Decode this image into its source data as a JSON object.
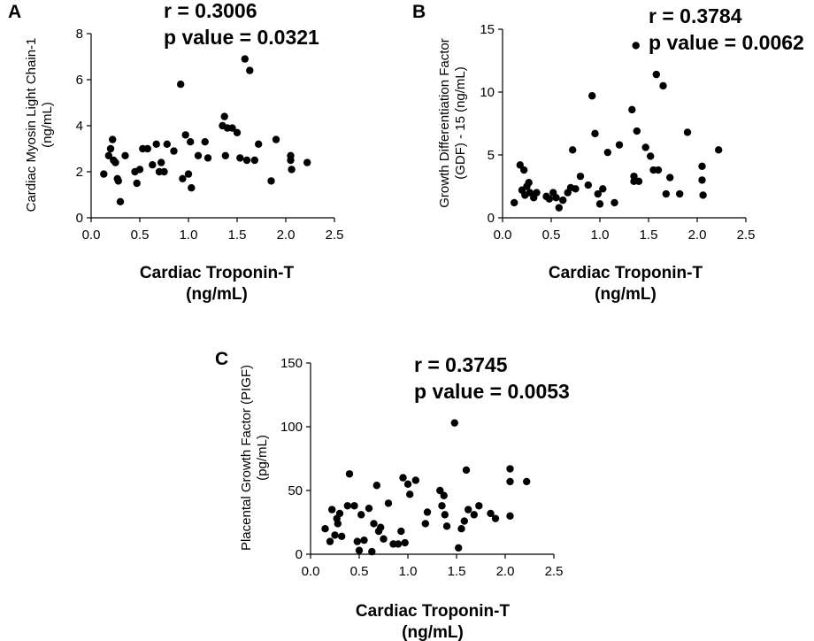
{
  "chart_data": [
    {
      "type": "scatter",
      "panel_label": "A",
      "stats": {
        "r": "r = 0.3006",
        "p": "p value = 0.0321"
      },
      "xlabel": [
        "Cardiac Troponin-T",
        "(ng/mL)"
      ],
      "ylabel": [
        "Cardiac Myosin Light Chain-1",
        "(ng/mL)"
      ],
      "xlim": [
        0,
        2.5
      ],
      "ylim": [
        0,
        8
      ],
      "xticks": [
        "0.0",
        "0.5",
        "1.0",
        "1.5",
        "2.0",
        "2.5"
      ],
      "xtick_values": [
        0,
        0.5,
        1.0,
        1.5,
        2.0,
        2.5
      ],
      "yticks": [
        "0",
        "2",
        "4",
        "6",
        "8"
      ],
      "ytick_values": [
        0,
        2,
        4,
        6,
        8
      ],
      "points": [
        [
          0.13,
          1.9
        ],
        [
          0.18,
          2.7
        ],
        [
          0.2,
          3.0
        ],
        [
          0.22,
          3.4
        ],
        [
          0.23,
          2.5
        ],
        [
          0.25,
          2.4
        ],
        [
          0.27,
          1.7
        ],
        [
          0.28,
          1.6
        ],
        [
          0.3,
          0.7
        ],
        [
          0.35,
          2.7
        ],
        [
          0.45,
          2.0
        ],
        [
          0.47,
          1.5
        ],
        [
          0.5,
          2.1
        ],
        [
          0.53,
          3.0
        ],
        [
          0.58,
          3.0
        ],
        [
          0.63,
          2.3
        ],
        [
          0.67,
          3.2
        ],
        [
          0.7,
          2.0
        ],
        [
          0.72,
          2.4
        ],
        [
          0.75,
          2.0
        ],
        [
          0.78,
          3.2
        ],
        [
          0.85,
          2.9
        ],
        [
          0.92,
          5.8
        ],
        [
          0.94,
          1.7
        ],
        [
          0.97,
          3.6
        ],
        [
          1.0,
          1.9
        ],
        [
          1.02,
          3.3
        ],
        [
          1.03,
          1.3
        ],
        [
          1.1,
          2.7
        ],
        [
          1.17,
          3.3
        ],
        [
          1.2,
          2.6
        ],
        [
          1.35,
          4.0
        ],
        [
          1.37,
          4.4
        ],
        [
          1.38,
          2.7
        ],
        [
          1.4,
          3.9
        ],
        [
          1.45,
          3.9
        ],
        [
          1.5,
          3.7
        ],
        [
          1.53,
          2.6
        ],
        [
          1.58,
          6.9
        ],
        [
          1.6,
          2.5
        ],
        [
          1.63,
          6.4
        ],
        [
          1.68,
          2.5
        ],
        [
          1.72,
          3.2
        ],
        [
          1.85,
          1.6
        ],
        [
          1.9,
          3.4
        ],
        [
          2.05,
          2.7
        ],
        [
          2.05,
          2.5
        ],
        [
          2.06,
          2.1
        ],
        [
          2.22,
          2.4
        ]
      ]
    },
    {
      "type": "scatter",
      "panel_label": "B",
      "stats": {
        "r": "r = 0.3784",
        "p": "p value = 0.0062"
      },
      "xlabel": [
        "Cardiac Troponin-T",
        "(ng/mL)"
      ],
      "ylabel": [
        "Growth Differentiation Factor",
        "(GDF) - 15 (ng/mL)"
      ],
      "xlim": [
        0,
        2.5
      ],
      "ylim": [
        0,
        15
      ],
      "xticks": [
        "0.0",
        "0.5",
        "1.0",
        "1.5",
        "2.0",
        "2.5"
      ],
      "xtick_values": [
        0,
        0.5,
        1.0,
        1.5,
        2.0,
        2.5
      ],
      "yticks": [
        "0",
        "5",
        "10",
        "15"
      ],
      "ytick_values": [
        0,
        5,
        10,
        15
      ],
      "points": [
        [
          0.12,
          1.2
        ],
        [
          0.18,
          4.2
        ],
        [
          0.2,
          2.2
        ],
        [
          0.22,
          3.8
        ],
        [
          0.23,
          1.8
        ],
        [
          0.25,
          2.5
        ],
        [
          0.27,
          2.8
        ],
        [
          0.28,
          2.0
        ],
        [
          0.32,
          1.6
        ],
        [
          0.35,
          2.0
        ],
        [
          0.45,
          1.7
        ],
        [
          0.48,
          1.5
        ],
        [
          0.52,
          2.0
        ],
        [
          0.55,
          1.6
        ],
        [
          0.58,
          0.8
        ],
        [
          0.62,
          1.4
        ],
        [
          0.67,
          2.0
        ],
        [
          0.7,
          2.4
        ],
        [
          0.72,
          5.4
        ],
        [
          0.75,
          2.3
        ],
        [
          0.8,
          3.3
        ],
        [
          0.88,
          2.6
        ],
        [
          0.92,
          9.7
        ],
        [
          0.95,
          6.7
        ],
        [
          0.98,
          1.9
        ],
        [
          1.0,
          1.1
        ],
        [
          1.03,
          2.3
        ],
        [
          1.08,
          5.2
        ],
        [
          1.15,
          1.2
        ],
        [
          1.2,
          5.8
        ],
        [
          1.33,
          8.6
        ],
        [
          1.35,
          3.3
        ],
        [
          1.35,
          2.9
        ],
        [
          1.37,
          13.7
        ],
        [
          1.38,
          6.9
        ],
        [
          1.4,
          2.9
        ],
        [
          1.47,
          5.6
        ],
        [
          1.52,
          4.9
        ],
        [
          1.55,
          3.8
        ],
        [
          1.58,
          11.4
        ],
        [
          1.6,
          3.8
        ],
        [
          1.65,
          10.5
        ],
        [
          1.68,
          1.9
        ],
        [
          1.72,
          3.2
        ],
        [
          1.82,
          1.9
        ],
        [
          1.9,
          6.8
        ],
        [
          2.05,
          4.1
        ],
        [
          2.05,
          3.0
        ],
        [
          2.06,
          1.8
        ],
        [
          2.22,
          5.4
        ]
      ]
    },
    {
      "type": "scatter",
      "panel_label": "C",
      "stats": {
        "r": "r = 0.3745",
        "p": "p value = 0.0053"
      },
      "xlabel": [
        "Cardiac Troponin-T",
        "(ng/mL)"
      ],
      "ylabel": [
        "Placental Growth Factor (PIGF)",
        "(pg/mL)"
      ],
      "xlim": [
        0,
        2.5
      ],
      "ylim": [
        0,
        150
      ],
      "xticks": [
        "0.0",
        "0.5",
        "1.0",
        "1.5",
        "2.0",
        "2.5"
      ],
      "xtick_values": [
        0,
        0.5,
        1.0,
        1.5,
        2.0,
        2.5
      ],
      "yticks": [
        "0",
        "50",
        "100",
        "150"
      ],
      "ytick_values": [
        0,
        50,
        100,
        150
      ],
      "points": [
        [
          0.15,
          20
        ],
        [
          0.2,
          10
        ],
        [
          0.22,
          35
        ],
        [
          0.25,
          15
        ],
        [
          0.27,
          28
        ],
        [
          0.28,
          24
        ],
        [
          0.3,
          32
        ],
        [
          0.32,
          14
        ],
        [
          0.38,
          38
        ],
        [
          0.4,
          63
        ],
        [
          0.45,
          38
        ],
        [
          0.48,
          10
        ],
        [
          0.5,
          3
        ],
        [
          0.52,
          31
        ],
        [
          0.55,
          11
        ],
        [
          0.6,
          36
        ],
        [
          0.63,
          2
        ],
        [
          0.65,
          24
        ],
        [
          0.68,
          54
        ],
        [
          0.7,
          18
        ],
        [
          0.72,
          21
        ],
        [
          0.75,
          12
        ],
        [
          0.8,
          40
        ],
        [
          0.85,
          8
        ],
        [
          0.9,
          8
        ],
        [
          0.93,
          18
        ],
        [
          0.95,
          60
        ],
        [
          0.97,
          9
        ],
        [
          1.0,
          55
        ],
        [
          1.02,
          47
        ],
        [
          1.08,
          58
        ],
        [
          1.18,
          24
        ],
        [
          1.2,
          33
        ],
        [
          1.33,
          50
        ],
        [
          1.35,
          38
        ],
        [
          1.37,
          46
        ],
        [
          1.38,
          31
        ],
        [
          1.4,
          22
        ],
        [
          1.48,
          103
        ],
        [
          1.52,
          5
        ],
        [
          1.55,
          20
        ],
        [
          1.58,
          26
        ],
        [
          1.6,
          66
        ],
        [
          1.62,
          35
        ],
        [
          1.68,
          31
        ],
        [
          1.73,
          38
        ],
        [
          1.85,
          32
        ],
        [
          1.9,
          28
        ],
        [
          2.05,
          67
        ],
        [
          2.05,
          57
        ],
        [
          2.05,
          30
        ],
        [
          2.22,
          57
        ]
      ]
    }
  ]
}
